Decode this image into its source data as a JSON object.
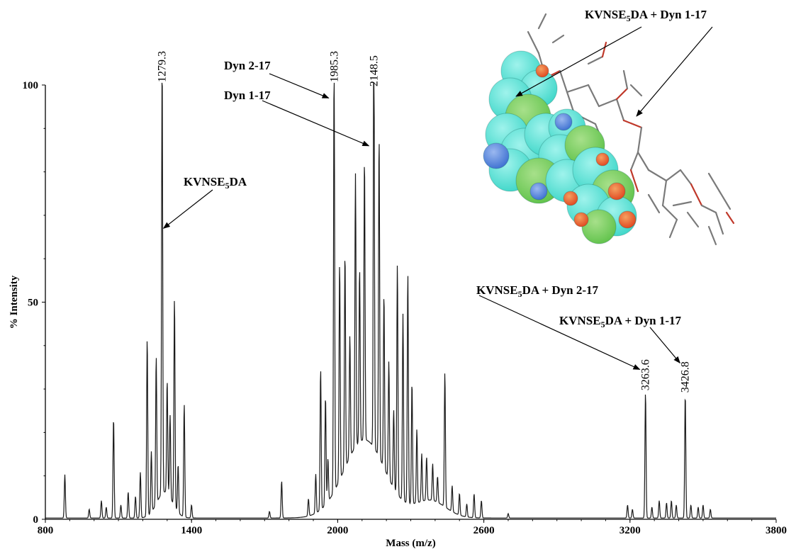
{
  "chart_data": {
    "type": "line",
    "xlabel": "Mass (m/z)",
    "ylabel": "% Intensity",
    "xlim": [
      800,
      3800
    ],
    "ylim": [
      0,
      100
    ],
    "x_ticks": [
      "800",
      "1400",
      "2000",
      "2600",
      "3200",
      "3800"
    ],
    "y_ticks": [
      "0",
      "50",
      "100"
    ],
    "peaks": [
      {
        "x": 880,
        "y": 10
      },
      {
        "x": 980,
        "y": 2
      },
      {
        "x": 1030,
        "y": 4
      },
      {
        "x": 1050,
        "y": 2.5
      },
      {
        "x": 1080,
        "y": 23
      },
      {
        "x": 1110,
        "y": 3
      },
      {
        "x": 1140,
        "y": 6
      },
      {
        "x": 1170,
        "y": 5
      },
      {
        "x": 1190,
        "y": 10.5
      },
      {
        "x": 1218,
        "y": 41
      },
      {
        "x": 1235,
        "y": 14
      },
      {
        "x": 1255,
        "y": 34
      },
      {
        "x": 1279.3,
        "y": 100
      },
      {
        "x": 1300,
        "y": 26
      },
      {
        "x": 1312,
        "y": 19
      },
      {
        "x": 1330,
        "y": 48
      },
      {
        "x": 1345,
        "y": 11
      },
      {
        "x": 1370,
        "y": 26
      },
      {
        "x": 1400,
        "y": 3
      },
      {
        "x": 1720,
        "y": 1.5
      },
      {
        "x": 1770,
        "y": 8.5
      },
      {
        "x": 1880,
        "y": 4
      },
      {
        "x": 1910,
        "y": 9
      },
      {
        "x": 1930,
        "y": 32.5
      },
      {
        "x": 1950,
        "y": 25
      },
      {
        "x": 1960,
        "y": 10
      },
      {
        "x": 1985.3,
        "y": 100
      },
      {
        "x": 2008,
        "y": 50
      },
      {
        "x": 2030,
        "y": 49.5
      },
      {
        "x": 2050,
        "y": 28
      },
      {
        "x": 2073,
        "y": 63
      },
      {
        "x": 2090,
        "y": 40
      },
      {
        "x": 2110,
        "y": 65
      },
      {
        "x": 2148.5,
        "y": 99
      },
      {
        "x": 2170,
        "y": 74
      },
      {
        "x": 2190,
        "y": 40
      },
      {
        "x": 2210,
        "y": 27
      },
      {
        "x": 2230,
        "y": 18
      },
      {
        "x": 2245,
        "y": 53
      },
      {
        "x": 2268,
        "y": 43
      },
      {
        "x": 2288,
        "y": 53
      },
      {
        "x": 2305,
        "y": 28
      },
      {
        "x": 2325,
        "y": 17
      },
      {
        "x": 2345,
        "y": 11
      },
      {
        "x": 2365,
        "y": 10
      },
      {
        "x": 2390,
        "y": 8.5
      },
      {
        "x": 2410,
        "y": 6
      },
      {
        "x": 2440,
        "y": 31
      },
      {
        "x": 2470,
        "y": 6
      },
      {
        "x": 2500,
        "y": 5
      },
      {
        "x": 2530,
        "y": 3
      },
      {
        "x": 2560,
        "y": 5.5
      },
      {
        "x": 2590,
        "y": 4
      },
      {
        "x": 2700,
        "y": 1
      },
      {
        "x": 3190,
        "y": 3
      },
      {
        "x": 3210,
        "y": 2
      },
      {
        "x": 3263.6,
        "y": 29
      },
      {
        "x": 3290,
        "y": 2.5
      },
      {
        "x": 3320,
        "y": 4
      },
      {
        "x": 3350,
        "y": 3.5
      },
      {
        "x": 3370,
        "y": 4
      },
      {
        "x": 3390,
        "y": 3
      },
      {
        "x": 3426.8,
        "y": 28.5
      },
      {
        "x": 3450,
        "y": 3
      },
      {
        "x": 3480,
        "y": 2.5
      },
      {
        "x": 3500,
        "y": 3
      },
      {
        "x": 3530,
        "y": 2
      }
    ],
    "peak_labels": [
      {
        "x": 1279.3,
        "y": 100,
        "text": "1279.3"
      },
      {
        "x": 1985.3,
        "y": 100,
        "text": "1985.3"
      },
      {
        "x": 2148.5,
        "y": 99,
        "text": "2148.5"
      },
      {
        "x": 3263.6,
        "y": 29,
        "text": "3263.6"
      },
      {
        "x": 3426.8,
        "y": 28.5,
        "text": "3426.8"
      }
    ],
    "annotations": [
      {
        "id": "kvnse",
        "parts": [
          "KVNSE",
          "5",
          "DA"
        ],
        "target": {
          "x": 1285,
          "y": 67
        }
      },
      {
        "id": "dyn217",
        "parts": [
          "Dyn 2-17"
        ],
        "target": {
          "x": 1963,
          "y": 97
        }
      },
      {
        "id": "dyn117",
        "parts": [
          "Dyn 1-17"
        ],
        "target": {
          "x": 2128,
          "y": 86
        }
      },
      {
        "id": "kv-dyn217",
        "parts": [
          "KVNSE",
          "5",
          "DA + Dyn 2-17"
        ],
        "target": {
          "x": 3240,
          "y": 34.5
        }
      },
      {
        "id": "kv-dyn117",
        "parts": [
          "KVNSE",
          "5",
          "DA + Dyn 1-17"
        ],
        "target": {
          "x": 3405,
          "y": 36
        }
      },
      {
        "id": "inset-label",
        "parts": [
          "KVNSE",
          "5",
          "DA + Dyn 1-17"
        ]
      }
    ]
  },
  "inset": {
    "description_icon": "molecular-structure-icon",
    "colors": {
      "surface": "#3dd6c8",
      "green": "#5fc24a",
      "yellow": "#e3d93a",
      "red": "#e0451f",
      "blue": "#3b6fd0",
      "stick": "#7a7a7a",
      "stick_red": "#c0392b"
    }
  }
}
